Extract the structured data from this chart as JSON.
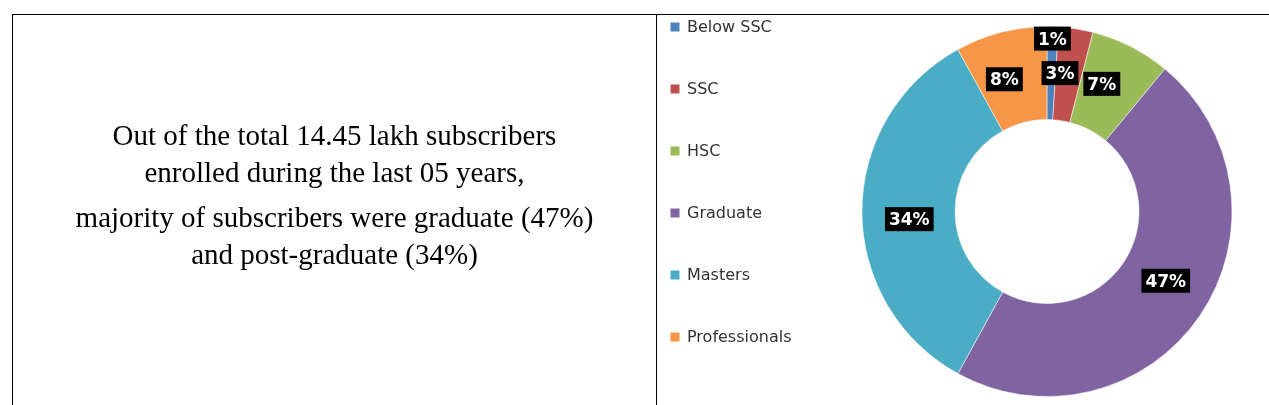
{
  "chart_data": [
    {
      "type": "other",
      "annotations": [
        "Out of the total 14.45 lakh subscribers enrolled during the last 05 years,",
        "majority of subscribers were graduate (47%) and post-graduate (34%)"
      ]
    },
    {
      "type": "donut",
      "categories": [
        "Below SSC",
        "SSC",
        "HSC",
        "Graduate",
        "Masters",
        "Professionals"
      ],
      "values": [
        1,
        3,
        7,
        47,
        34,
        8
      ],
      "colors": [
        "#4f81bd",
        "#c0504d",
        "#9bbb59",
        "#8064a2",
        "#4bacc6",
        "#f79646"
      ],
      "value_labels": [
        "1%",
        "3%",
        "7%",
        "47%",
        "34%",
        "8%"
      ],
      "legend": "left"
    }
  ]
}
